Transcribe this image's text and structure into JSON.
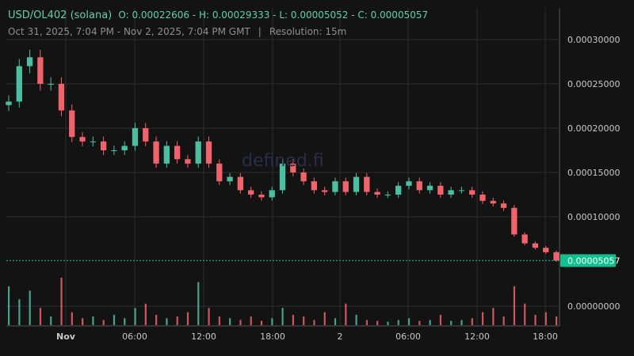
{
  "header": {
    "pair": "USD/OL402 (solana)",
    "ohlc": "O: 0.00022606 - H: 0.00029333 - L: 0.00005052 - C: 0.00005057",
    "range": "Oct 31, 2025, 7:04 PM - Nov 2, 2025, 7:04 PM GMT",
    "separator": "|",
    "resolution": "Resolution: 15m"
  },
  "watermark": "defined.fi",
  "colors": {
    "up": "#4bbf9f",
    "down": "#f0636a",
    "last_price_bg": "#10c18f",
    "grid": "#2c2c2c",
    "axis_text": "#c8c8c8"
  },
  "chart_data": {
    "type": "candlestick",
    "title": "USD/OL402 (solana)",
    "ylim": [
      5.057e-05,
      0.0003
    ],
    "y_ticks": [
      "0.00030000",
      "0.00025000",
      "0.00020000",
      "0.00015000",
      "0.00010000"
    ],
    "last_price_label": "0.00005057",
    "volume_tick": "0.00000000",
    "x_ticks": [
      "Nov",
      "06:00",
      "12:00",
      "18:00",
      "2",
      "06:00",
      "12:00",
      "18:00"
    ],
    "open_first": 0.00022606,
    "closes": [
      0.00023,
      0.00027,
      0.00028,
      0.00025,
      0.00025,
      0.00022,
      0.00019,
      0.000185,
      0.000185,
      0.000175,
      0.000175,
      0.00018,
      0.0002,
      0.000185,
      0.00016,
      0.00018,
      0.000165,
      0.00016,
      0.000185,
      0.00016,
      0.00014,
      0.000145,
      0.00013,
      0.000125,
      0.000122,
      0.00013,
      0.00016,
      0.00015,
      0.00014,
      0.00013,
      0.000128,
      0.00014,
      0.000128,
      0.000145,
      0.000128,
      0.000125,
      0.000125,
      0.000135,
      0.00014,
      0.00013,
      0.000135,
      0.000125,
      0.00013,
      0.00013,
      0.000125,
      0.000118,
      0.000115,
      0.00011,
      8e-05,
      7e-05,
      6.5e-05,
      6e-05,
      5.057e-05
    ],
    "volumes": [
      45,
      30,
      40,
      20,
      10,
      55,
      15,
      8,
      10,
      6,
      12,
      8,
      20,
      25,
      12,
      8,
      10,
      15,
      50,
      20,
      10,
      8,
      6,
      10,
      5,
      8,
      20,
      12,
      10,
      6,
      15,
      8,
      25,
      12,
      6,
      5,
      4,
      6,
      8,
      5,
      6,
      12,
      5,
      6,
      8,
      15,
      20,
      10,
      45,
      25,
      12,
      15,
      10
    ]
  }
}
